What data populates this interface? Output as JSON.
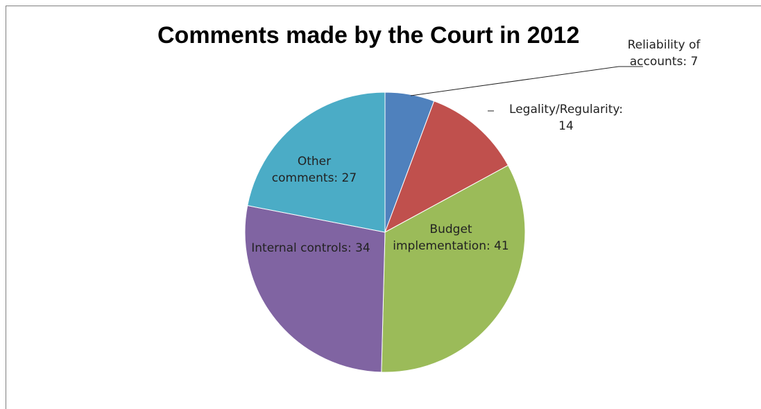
{
  "chart_data": {
    "type": "pie",
    "title": "Comments made by the Court in 2012",
    "slices": [
      {
        "label_lines": [
          "Reliability of",
          "accounts: 7"
        ],
        "category": "Reliability of accounts",
        "value": 7,
        "color": "#4f81bd"
      },
      {
        "label_lines": [
          "Legality/Regularity:",
          "14"
        ],
        "category": "Legality/Regularity",
        "value": 14,
        "color": "#c0504d"
      },
      {
        "label_lines": [
          "Budget",
          "implementation: 41"
        ],
        "category": "Budget implementation",
        "value": 41,
        "color": "#9bbb59"
      },
      {
        "label_lines": [
          "Internal controls: 34"
        ],
        "category": "Internal controls",
        "value": 34,
        "color": "#8064a2"
      },
      {
        "label_lines": [
          "Other",
          "comments: 27"
        ],
        "category": "Other comments",
        "value": 27,
        "color": "#4bacc6"
      }
    ],
    "legend": "none",
    "start_angle": "12 o'clock",
    "direction": "clockwise"
  }
}
